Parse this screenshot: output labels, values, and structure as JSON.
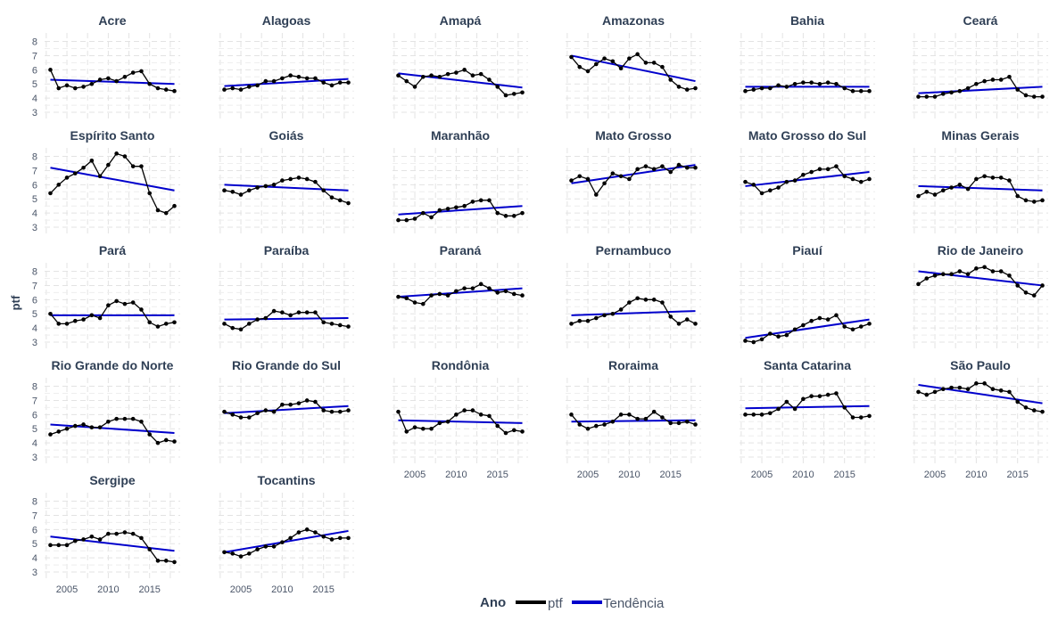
{
  "chart_data": {
    "type": "line",
    "ylabel": "ptf",
    "xlabel": "",
    "x": [
      2003,
      2004,
      2005,
      2006,
      2007,
      2008,
      2009,
      2010,
      2011,
      2012,
      2013,
      2014,
      2015,
      2016,
      2017,
      2018
    ],
    "xlim": [
      2002.3,
      2018.7
    ],
    "ylim": [
      2.5,
      8.6
    ],
    "xticks": [
      2005,
      2010,
      2015
    ],
    "yticks": [
      3,
      4,
      5,
      6,
      7,
      8
    ],
    "grid": true,
    "legend": {
      "title": "Ano",
      "placement": "bottom",
      "entries": [
        {
          "label": "ptf",
          "color": "#000000"
        },
        {
          "label": "Tendência",
          "color": "#0000cc"
        }
      ]
    },
    "colors": {
      "data": "#000000",
      "trend": "#0000cc",
      "grid": "#e3e3e3",
      "title": "#2f3f55"
    },
    "panels": [
      {
        "name": "Acre",
        "values": [
          6.0,
          4.7,
          4.9,
          4.7,
          4.8,
          5.0,
          5.3,
          5.4,
          5.2,
          5.5,
          5.8,
          5.9,
          5.0,
          4.7,
          4.6,
          4.5
        ],
        "trend": [
          5.3,
          5.0
        ]
      },
      {
        "name": "Alagoas",
        "values": [
          4.6,
          4.7,
          4.6,
          4.8,
          4.9,
          5.2,
          5.2,
          5.4,
          5.6,
          5.5,
          5.4,
          5.4,
          5.1,
          4.9,
          5.1,
          5.1
        ],
        "trend": [
          4.85,
          5.35
        ]
      },
      {
        "name": "Amapá",
        "values": [
          5.6,
          5.2,
          4.8,
          5.5,
          5.6,
          5.5,
          5.7,
          5.8,
          6.0,
          5.6,
          5.7,
          5.3,
          4.8,
          4.2,
          4.3,
          4.4
        ],
        "trend": [
          5.75,
          4.75
        ]
      },
      {
        "name": "Amazonas",
        "values": [
          6.9,
          6.2,
          5.9,
          6.4,
          6.8,
          6.6,
          6.1,
          6.8,
          7.1,
          6.5,
          6.5,
          6.2,
          5.3,
          4.8,
          4.6,
          4.7
        ],
        "trend": [
          7.0,
          5.2
        ]
      },
      {
        "name": "Bahia",
        "values": [
          4.5,
          4.6,
          4.7,
          4.7,
          4.9,
          4.8,
          5.0,
          5.1,
          5.1,
          5.0,
          5.1,
          5.0,
          4.7,
          4.5,
          4.5,
          4.5
        ],
        "trend": [
          4.8,
          4.8
        ]
      },
      {
        "name": "Ceará",
        "values": [
          4.1,
          4.1,
          4.1,
          4.3,
          4.4,
          4.5,
          4.7,
          5.0,
          5.2,
          5.3,
          5.3,
          5.5,
          4.6,
          4.2,
          4.1,
          4.1
        ],
        "trend": [
          4.35,
          4.8
        ]
      },
      {
        "name": "Espírito Santo",
        "values": [
          5.4,
          6.0,
          6.5,
          6.8,
          7.2,
          7.7,
          6.6,
          7.4,
          8.2,
          8.0,
          7.3,
          7.3,
          5.4,
          4.2,
          4.0,
          4.5
        ],
        "trend": [
          7.2,
          5.6
        ]
      },
      {
        "name": "Goiás",
        "values": [
          5.6,
          5.5,
          5.3,
          5.6,
          5.8,
          5.9,
          6.0,
          6.3,
          6.4,
          6.5,
          6.4,
          6.2,
          5.6,
          5.1,
          4.9,
          4.7
        ],
        "trend": [
          6.0,
          5.6
        ]
      },
      {
        "name": "Maranhão",
        "values": [
          3.5,
          3.5,
          3.6,
          4.0,
          3.7,
          4.2,
          4.3,
          4.4,
          4.5,
          4.8,
          4.9,
          4.9,
          4.0,
          3.8,
          3.8,
          4.0
        ],
        "trend": [
          3.9,
          4.5
        ]
      },
      {
        "name": "Mato Grosso",
        "values": [
          6.3,
          6.6,
          6.4,
          5.3,
          6.1,
          6.8,
          6.6,
          6.4,
          7.1,
          7.3,
          7.1,
          7.3,
          6.9,
          7.4,
          7.2,
          7.2
        ],
        "trend": [
          6.1,
          7.4
        ]
      },
      {
        "name": "Mato Grosso do Sul",
        "values": [
          6.2,
          6.0,
          5.4,
          5.6,
          5.8,
          6.2,
          6.3,
          6.7,
          6.9,
          7.1,
          7.1,
          7.3,
          6.6,
          6.4,
          6.2,
          6.4
        ],
        "trend": [
          5.9,
          6.9
        ]
      },
      {
        "name": "Minas Gerais",
        "values": [
          5.2,
          5.5,
          5.3,
          5.6,
          5.8,
          6.0,
          5.7,
          6.4,
          6.6,
          6.5,
          6.5,
          6.3,
          5.2,
          4.9,
          4.8,
          4.9
        ],
        "trend": [
          5.9,
          5.6
        ]
      },
      {
        "name": "Pará",
        "values": [
          5.0,
          4.3,
          4.3,
          4.5,
          4.6,
          4.9,
          4.7,
          5.6,
          5.9,
          5.7,
          5.8,
          5.3,
          4.4,
          4.1,
          4.3,
          4.4
        ],
        "trend": [
          4.9,
          4.9
        ]
      },
      {
        "name": "Paraíba",
        "values": [
          4.3,
          4.0,
          3.9,
          4.3,
          4.6,
          4.7,
          5.2,
          5.1,
          4.9,
          5.1,
          5.1,
          5.1,
          4.4,
          4.3,
          4.2,
          4.1
        ],
        "trend": [
          4.6,
          4.7
        ]
      },
      {
        "name": "Paraná",
        "values": [
          6.2,
          6.1,
          5.8,
          5.7,
          6.3,
          6.4,
          6.3,
          6.6,
          6.8,
          6.8,
          7.1,
          6.8,
          6.5,
          6.6,
          6.4,
          6.3
        ],
        "trend": [
          6.2,
          6.8
        ]
      },
      {
        "name": "Pernambuco",
        "values": [
          4.3,
          4.5,
          4.5,
          4.7,
          4.9,
          5.0,
          5.3,
          5.8,
          6.1,
          6.0,
          6.0,
          5.8,
          4.8,
          4.3,
          4.6,
          4.3
        ],
        "trend": [
          4.9,
          5.2
        ]
      },
      {
        "name": "Piauí",
        "values": [
          3.1,
          3.0,
          3.2,
          3.6,
          3.4,
          3.5,
          3.9,
          4.2,
          4.5,
          4.7,
          4.6,
          4.9,
          4.1,
          3.9,
          4.1,
          4.3
        ],
        "trend": [
          3.3,
          4.6
        ]
      },
      {
        "name": "Rio de Janeiro",
        "values": [
          7.1,
          7.5,
          7.7,
          7.8,
          7.8,
          8.0,
          7.8,
          8.2,
          8.3,
          8.0,
          8.0,
          7.7,
          7.0,
          6.5,
          6.3,
          7.0
        ],
        "trend": [
          8.0,
          7.0
        ]
      },
      {
        "name": "Rio Grande do Norte",
        "values": [
          4.6,
          4.8,
          5.0,
          5.2,
          5.3,
          5.1,
          5.1,
          5.5,
          5.7,
          5.7,
          5.7,
          5.5,
          4.6,
          4.0,
          4.2,
          4.1
        ],
        "trend": [
          5.3,
          4.7
        ]
      },
      {
        "name": "Rio Grande do Sul",
        "values": [
          6.2,
          6.0,
          5.8,
          5.8,
          6.1,
          6.3,
          6.2,
          6.7,
          6.7,
          6.8,
          7.0,
          6.9,
          6.3,
          6.2,
          6.2,
          6.3
        ],
        "trend": [
          6.1,
          6.6
        ]
      },
      {
        "name": "Rondônia",
        "values": [
          6.2,
          4.8,
          5.1,
          5.0,
          5.0,
          5.4,
          5.5,
          6.0,
          6.3,
          6.3,
          6.0,
          5.9,
          5.2,
          4.7,
          4.9,
          4.8
        ],
        "trend": [
          5.6,
          5.4
        ]
      },
      {
        "name": "Roraima",
        "values": [
          6.0,
          5.3,
          5.0,
          5.2,
          5.3,
          5.5,
          6.0,
          6.0,
          5.7,
          5.7,
          6.2,
          5.8,
          5.4,
          5.4,
          5.5,
          5.3
        ],
        "trend": [
          5.5,
          5.6
        ]
      },
      {
        "name": "Santa Catarina",
        "values": [
          6.0,
          6.0,
          6.0,
          6.1,
          6.4,
          6.9,
          6.4,
          7.1,
          7.3,
          7.3,
          7.4,
          7.5,
          6.5,
          5.8,
          5.8,
          5.9
        ],
        "trend": [
          6.45,
          6.6
        ]
      },
      {
        "name": "São Paulo",
        "values": [
          7.6,
          7.4,
          7.6,
          7.8,
          7.9,
          7.9,
          7.8,
          8.2,
          8.2,
          7.8,
          7.7,
          7.6,
          6.9,
          6.5,
          6.3,
          6.2
        ],
        "trend": [
          8.1,
          6.8
        ]
      },
      {
        "name": "Sergipe",
        "values": [
          4.9,
          4.9,
          4.9,
          5.2,
          5.3,
          5.5,
          5.3,
          5.7,
          5.7,
          5.8,
          5.7,
          5.4,
          4.6,
          3.8,
          3.8,
          3.7
        ],
        "trend": [
          5.5,
          4.5
        ]
      },
      {
        "name": "Tocantins",
        "values": [
          4.4,
          4.3,
          4.1,
          4.3,
          4.6,
          4.8,
          4.8,
          5.1,
          5.4,
          5.8,
          6.0,
          5.8,
          5.5,
          5.3,
          5.4,
          5.4
        ],
        "trend": [
          4.4,
          5.9
        ]
      }
    ]
  }
}
